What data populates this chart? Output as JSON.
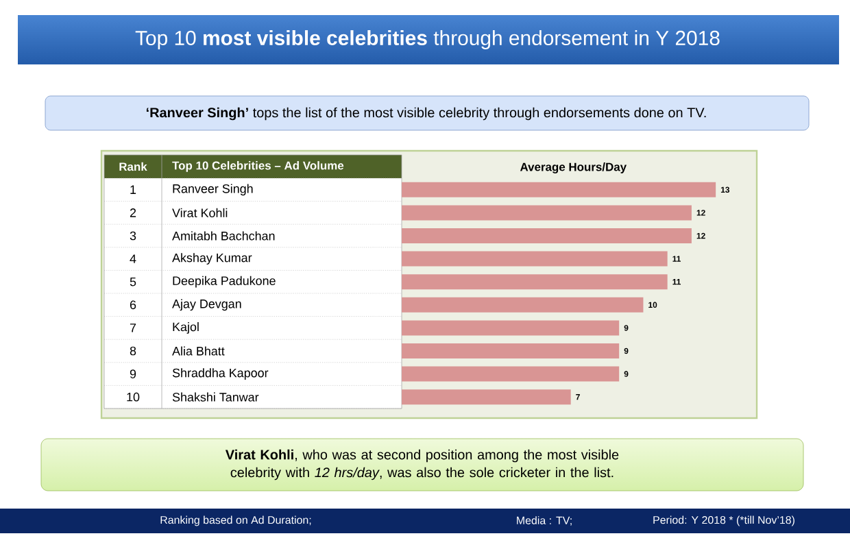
{
  "chart_data": {
    "type": "bar",
    "orientation": "horizontal",
    "title": "Top 10 **most visible celebrities** through endorsement in Y 2018",
    "subtitle": "**‘Ranveer Singh’** tops the list of the most visible celebrity through endorsements done on TV.",
    "xlabel": "Average Hours/Day",
    "categories": [
      "Ranveer Singh",
      "Virat Kohli",
      "Amitabh Bachchan",
      "Akshay Kumar",
      "Deepika Padukone",
      "Ajay Devgan",
      "Kajol",
      "Alia Bhatt",
      "Shraddha Kapoor",
      "Shakshi Tanwar"
    ],
    "values": [
      13,
      12,
      12,
      11,
      11,
      10,
      9,
      9,
      9,
      7
    ],
    "color": "#d99594",
    "data_labels": true,
    "tick_labels": "y",
    "annotations": [
      "Rank",
      "Top 10 Celebrities – Ad Volume",
      "1",
      "2",
      "3",
      "4",
      "5",
      "6",
      "7",
      "8",
      "9",
      "10",
      "**Virat Kohli**, who was at second position among the most visible celebrity with *12 hrs/day*, was also the sole cricketer in the list.",
      "Ranking  based on Ad Duration;",
      "Media : TV;",
      "Period: Y 2018 * (*till Nov’18)"
    ]
  }
}
